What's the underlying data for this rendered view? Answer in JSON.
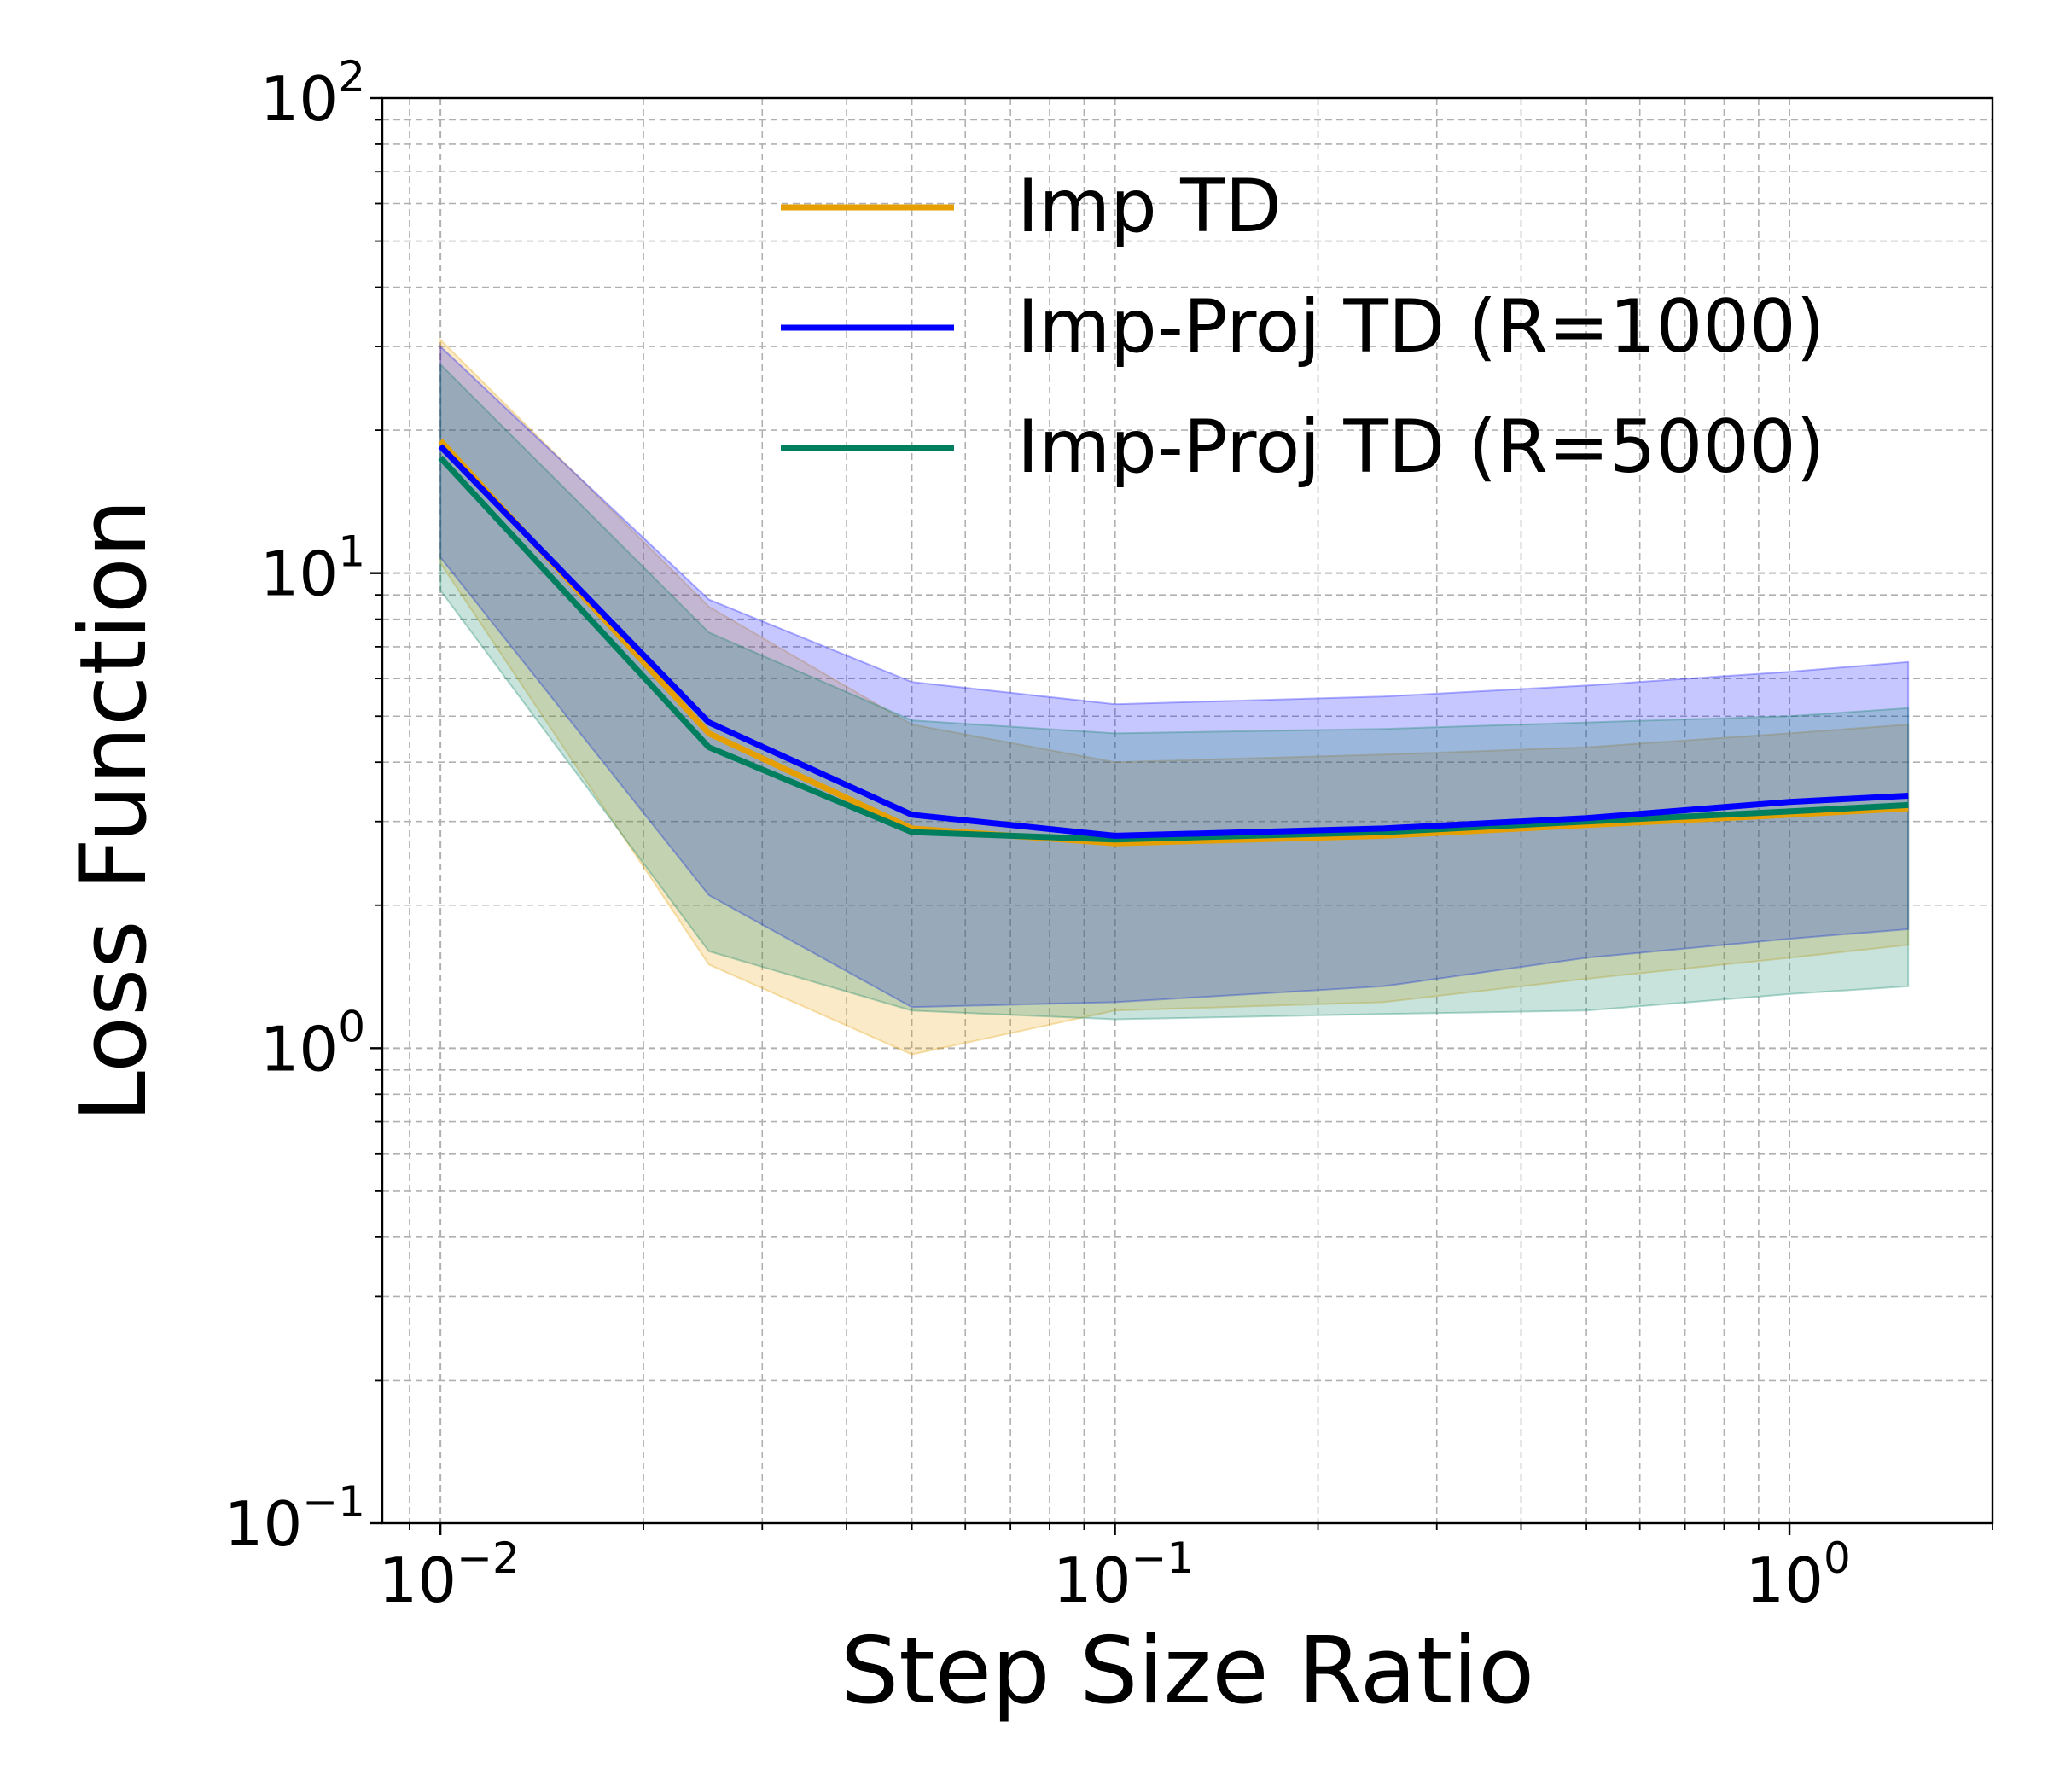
{
  "chart_data": {
    "type": "line",
    "title": "",
    "xlabel": "Step Size Ratio",
    "ylabel": "Loss Function",
    "xscale": "log",
    "yscale": "log",
    "xlim": [
      0.0082,
      2.0
    ],
    "ylim": [
      0.1,
      100
    ],
    "grid": true,
    "legend_position": "top-right",
    "x": [
      0.01,
      0.025,
      0.05,
      0.1,
      0.25,
      0.5,
      1.0,
      1.5
    ],
    "x_ticks": [
      {
        "value": 0.01,
        "base": "10",
        "exp": "−2"
      },
      {
        "value": 0.1,
        "base": "10",
        "exp": "−1"
      },
      {
        "value": 1.0,
        "base": "10",
        "exp": "0"
      }
    ],
    "y_ticks": [
      {
        "value": 0.1,
        "base": "10",
        "exp": "−1"
      },
      {
        "value": 1,
        "base": "10",
        "exp": "0"
      },
      {
        "value": 10,
        "base": "10",
        "exp": "1"
      },
      {
        "value": 100,
        "base": "10",
        "exp": "2"
      }
    ],
    "series": [
      {
        "name": "Imp TD",
        "color": "#E69F00",
        "values": [
          19.0,
          4.6,
          2.9,
          2.7,
          2.8,
          2.95,
          3.1,
          3.2
        ],
        "lower": [
          10.5,
          1.5,
          0.97,
          1.2,
          1.25,
          1.4,
          1.55,
          1.65
        ],
        "upper": [
          31.0,
          8.5,
          4.8,
          4.0,
          4.15,
          4.3,
          4.6,
          4.8
        ]
      },
      {
        "name": "Imp-Proj TD (R=1000)",
        "color": "#0000FF",
        "values": [
          18.5,
          4.85,
          3.1,
          2.8,
          2.9,
          3.05,
          3.3,
          3.4
        ],
        "lower": [
          10.8,
          2.1,
          1.22,
          1.25,
          1.35,
          1.55,
          1.7,
          1.78
        ],
        "upper": [
          30.0,
          8.8,
          5.9,
          5.3,
          5.5,
          5.8,
          6.2,
          6.5
        ]
      },
      {
        "name": "Imp-Proj TD (R=5000)",
        "color": "#007F5F",
        "values": [
          17.5,
          4.3,
          2.85,
          2.75,
          2.85,
          3.0,
          3.15,
          3.25
        ],
        "lower": [
          9.2,
          1.6,
          1.2,
          1.15,
          1.18,
          1.2,
          1.3,
          1.35
        ],
        "upper": [
          27.5,
          7.5,
          4.9,
          4.6,
          4.7,
          4.85,
          5.0,
          5.2
        ]
      }
    ]
  }
}
